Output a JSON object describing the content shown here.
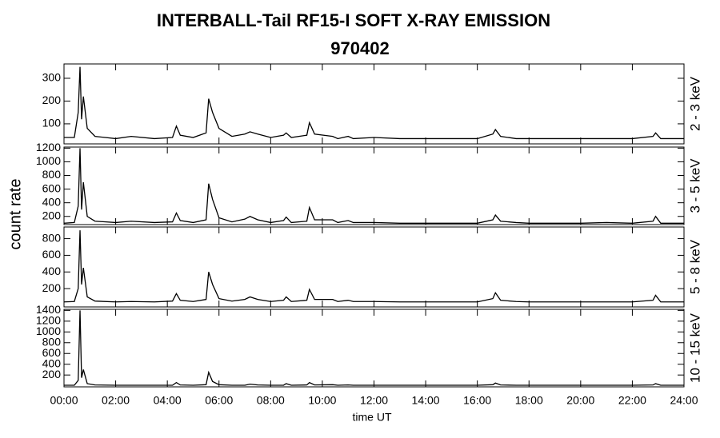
{
  "chart_data": [
    {
      "type": "line",
      "title": "INTERBALL-Tail RF15-I SOFT X-RAY EMISSION",
      "subtitle": "970402",
      "ylabel_left": "count rate",
      "ylabel": "2 - 3 keV",
      "color": "#000000",
      "xlim": [
        0,
        24
      ],
      "ylim": [
        12,
        363
      ],
      "yticks": [
        100,
        200,
        300
      ],
      "x": [
        0,
        0.4,
        0.55,
        0.62,
        0.68,
        0.75,
        0.9,
        1.2,
        2,
        2.6,
        3.5,
        4.2,
        4.35,
        4.5,
        5,
        5.5,
        5.6,
        5.75,
        6,
        6.5,
        7,
        7.2,
        7.5,
        8,
        8.5,
        8.6,
        8.8,
        9.4,
        9.5,
        9.7,
        10.4,
        10.6,
        11,
        11.2,
        12,
        13,
        14,
        15,
        16,
        16.6,
        16.7,
        16.9,
        17.5,
        18,
        19,
        20,
        21,
        22,
        22.8,
        22.9,
        23.1,
        24
      ],
      "values": [
        40,
        40,
        150,
        350,
        120,
        220,
        80,
        45,
        35,
        45,
        35,
        40,
        90,
        50,
        40,
        60,
        210,
        150,
        80,
        45,
        55,
        65,
        55,
        40,
        50,
        60,
        40,
        50,
        105,
        55,
        45,
        35,
        45,
        35,
        40,
        35,
        35,
        35,
        35,
        55,
        75,
        45,
        35,
        35,
        35,
        35,
        35,
        35,
        45,
        60,
        35,
        35
      ]
    },
    {
      "type": "line",
      "ylabel": "3 - 5 keV",
      "color": "#000000",
      "xlim": [
        0,
        24
      ],
      "ylim": [
        80,
        1216
      ],
      "yticks": [
        200,
        400,
        600,
        800,
        1000,
        1200
      ],
      "x": [
        0,
        0.4,
        0.55,
        0.62,
        0.68,
        0.75,
        0.9,
        1.2,
        2,
        2.6,
        3.5,
        4.2,
        4.35,
        4.5,
        5,
        5.5,
        5.6,
        5.75,
        6,
        6.5,
        7,
        7.2,
        7.5,
        8,
        8.5,
        8.6,
        8.8,
        9.4,
        9.5,
        9.7,
        10.4,
        10.6,
        11,
        11.2,
        12,
        13,
        14,
        15,
        16,
        16.6,
        16.7,
        16.9,
        17.5,
        18,
        19,
        20,
        21,
        22,
        22.8,
        22.9,
        23.1,
        24
      ],
      "values": [
        100,
        110,
        350,
        1200,
        300,
        700,
        200,
        130,
        110,
        130,
        110,
        120,
        250,
        140,
        110,
        150,
        680,
        450,
        180,
        120,
        160,
        200,
        150,
        110,
        140,
        190,
        110,
        130,
        330,
        150,
        150,
        110,
        140,
        110,
        110,
        100,
        100,
        100,
        100,
        150,
        220,
        130,
        110,
        100,
        100,
        100,
        110,
        100,
        130,
        200,
        100,
        100
      ]
    },
    {
      "type": "line",
      "ylabel": "5 - 8 keV",
      "color": "#000000",
      "xlim": [
        0,
        24
      ],
      "ylim": [
        -20,
        940
      ],
      "yticks": [
        200,
        400,
        600,
        800
      ],
      "x": [
        0,
        0.4,
        0.55,
        0.62,
        0.68,
        0.75,
        0.9,
        1.2,
        2,
        2.6,
        3.5,
        4.2,
        4.35,
        4.5,
        5,
        5.5,
        5.6,
        5.75,
        6,
        6.5,
        7,
        7.2,
        7.5,
        8,
        8.5,
        8.6,
        8.8,
        9.4,
        9.5,
        9.7,
        10.4,
        10.6,
        11,
        11.2,
        12,
        13,
        14,
        15,
        16,
        16.6,
        16.7,
        16.9,
        17.5,
        18,
        19,
        20,
        21,
        22,
        22.8,
        22.9,
        23.1,
        24
      ],
      "values": [
        40,
        45,
        200,
        900,
        250,
        450,
        100,
        50,
        40,
        45,
        40,
        50,
        140,
        60,
        45,
        70,
        400,
        250,
        80,
        50,
        70,
        100,
        70,
        45,
        60,
        100,
        45,
        60,
        190,
        70,
        70,
        45,
        60,
        45,
        45,
        40,
        40,
        40,
        40,
        80,
        150,
        60,
        45,
        40,
        40,
        40,
        40,
        40,
        60,
        120,
        40,
        40
      ]
    },
    {
      "type": "line",
      "ylabel": "10 - 15 keV",
      "xlabel": "time UT",
      "color": "#000000",
      "xlim": [
        0,
        24
      ],
      "ylim": [
        -20,
        1420
      ],
      "yticks": [
        200,
        400,
        600,
        800,
        1000,
        1200,
        1400
      ],
      "xticks": [
        {
          "value": 0,
          "label": "00:00"
        },
        {
          "value": 2,
          "label": "02:00"
        },
        {
          "value": 4,
          "label": "04:00"
        },
        {
          "value": 6,
          "label": "06:00"
        },
        {
          "value": 8,
          "label": "08:00"
        },
        {
          "value": 10,
          "label": "10:00"
        },
        {
          "value": 12,
          "label": "12:00"
        },
        {
          "value": 14,
          "label": "14:00"
        },
        {
          "value": 16,
          "label": "16:00"
        },
        {
          "value": 18,
          "label": "18:00"
        },
        {
          "value": 20,
          "label": "20:00"
        },
        {
          "value": 22,
          "label": "22:00"
        },
        {
          "value": 24,
          "label": "24:00"
        }
      ],
      "x": [
        0,
        0.4,
        0.55,
        0.62,
        0.68,
        0.75,
        0.9,
        1.2,
        2,
        2.6,
        3.5,
        4.2,
        4.35,
        4.5,
        5,
        5.5,
        5.6,
        5.75,
        6,
        6.5,
        7,
        7.2,
        7.5,
        8,
        8.5,
        8.6,
        8.8,
        9.4,
        9.5,
        9.7,
        10.4,
        10.6,
        11,
        11.2,
        12,
        13,
        14,
        15,
        16,
        16.6,
        16.7,
        16.9,
        17.5,
        18,
        19,
        20,
        21,
        22,
        22.8,
        22.9,
        23.1,
        24
      ],
      "values": [
        10,
        10,
        100,
        1400,
        150,
        300,
        40,
        15,
        10,
        10,
        10,
        10,
        60,
        15,
        10,
        20,
        250,
        80,
        20,
        10,
        10,
        30,
        15,
        10,
        10,
        40,
        10,
        15,
        60,
        15,
        20,
        10,
        15,
        10,
        10,
        10,
        10,
        10,
        10,
        20,
        50,
        15,
        10,
        10,
        10,
        10,
        10,
        10,
        15,
        40,
        10,
        10
      ]
    }
  ]
}
